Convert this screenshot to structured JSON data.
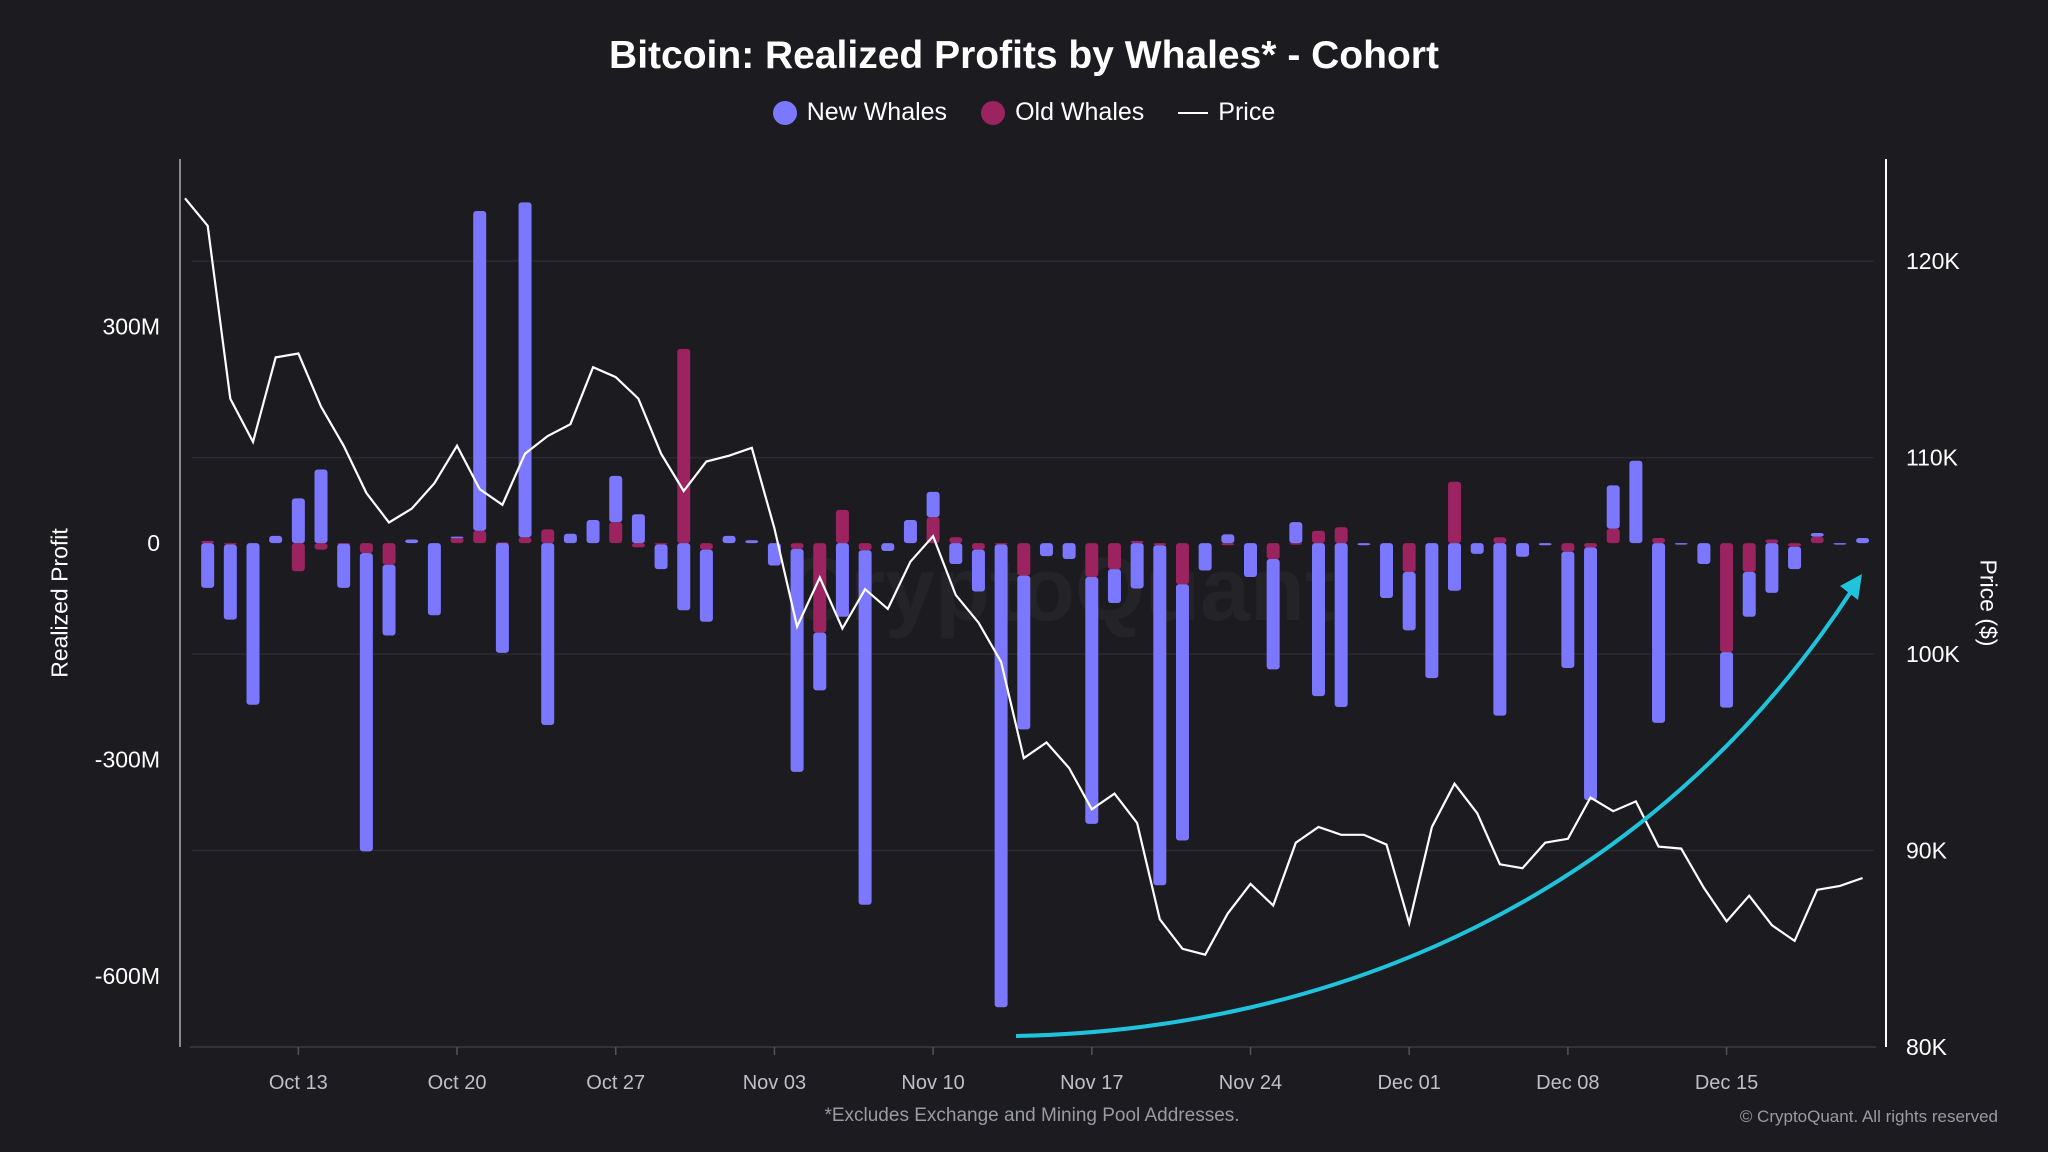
{
  "title": "Bitcoin: Realized Profits by Whales* - Cohort",
  "legend": [
    {
      "label": "New Whales",
      "color": "#7b78ff",
      "marker": "circle"
    },
    {
      "label": "Old Whales",
      "color": "#9b2360",
      "marker": "circle"
    },
    {
      "label": "Price",
      "color": "#ffffff",
      "marker": "line"
    }
  ],
  "footnote": "*Excludes Exchange and Mining Pool Addresses.",
  "copyright": "© CryptoQuant. All rights reserved",
  "watermark": "CryptoQuant",
  "chart_data": {
    "type": "bar",
    "subtypes": {
      "New Whales": "stacked-bar",
      "Old Whales": "stacked-bar",
      "Price": "line"
    },
    "title": "Bitcoin: Realized Profits by Whales* - Cohort",
    "ylabel": "Realized Profit",
    "ylabel_right": "Price ($)",
    "ylim": [
      -698,
      532
    ],
    "ylim_unit": "M",
    "ylim_right": [
      80,
      125.2
    ],
    "ylim_right_unit": "K",
    "yticks": [
      {
        "value": 300,
        "label": "300M"
      },
      {
        "value": 0,
        "label": "0"
      },
      {
        "value": -300,
        "label": "-300M"
      },
      {
        "value": -600,
        "label": "-600M"
      }
    ],
    "yticks_right": [
      {
        "value": 120,
        "label": "120K"
      },
      {
        "value": 110,
        "label": "110K"
      },
      {
        "value": 100,
        "label": "100K"
      },
      {
        "value": 90,
        "label": "90K"
      },
      {
        "value": 80,
        "label": "80K"
      }
    ],
    "xticks": [
      "Oct 13",
      "Oct 20",
      "Oct 27",
      "Nov 03",
      "Nov 10",
      "Nov 17",
      "Nov 24",
      "Dec 01",
      "Dec 08",
      "Dec 15"
    ],
    "grid": "horizontal at right-axis ticks",
    "legend_position": "top-center",
    "categories": [
      "Oct 08",
      "Oct 09",
      "Oct 10",
      "Oct 11",
      "Oct 12",
      "Oct 13",
      "Oct 14",
      "Oct 15",
      "Oct 16",
      "Oct 17",
      "Oct 18",
      "Oct 19",
      "Oct 20",
      "Oct 21",
      "Oct 22",
      "Oct 23",
      "Oct 24",
      "Oct 25",
      "Oct 26",
      "Oct 27",
      "Oct 28",
      "Oct 29",
      "Oct 30",
      "Oct 31",
      "Nov 01",
      "Nov 02",
      "Nov 03",
      "Nov 04",
      "Nov 05",
      "Nov 06",
      "Nov 07",
      "Nov 08",
      "Nov 09",
      "Nov 10",
      "Nov 11",
      "Nov 12",
      "Nov 13",
      "Nov 14",
      "Nov 15",
      "Nov 16",
      "Nov 17",
      "Nov 18",
      "Nov 19",
      "Nov 20",
      "Nov 21",
      "Nov 22",
      "Nov 23",
      "Nov 24",
      "Nov 25",
      "Nov 26",
      "Nov 27",
      "Nov 28",
      "Nov 29",
      "Nov 30",
      "Dec 01",
      "Dec 02",
      "Dec 03",
      "Dec 04",
      "Dec 05",
      "Dec 06",
      "Dec 07",
      "Dec 08",
      "Dec 09",
      "Dec 10",
      "Dec 11",
      "Dec 12",
      "Dec 13",
      "Dec 14",
      "Dec 15",
      "Dec 16",
      "Dec 17",
      "Dec 18",
      "Dec 19",
      "Dec 20",
      "Dec 21"
    ],
    "series": [
      {
        "name": "New Whales",
        "axis": "left",
        "unit": "M",
        "color": "#7b78ff",
        "values": [
          null,
          -62,
          -104,
          -224,
          10,
          62,
          102,
          -61,
          -413,
          -98,
          5,
          -100,
          1,
          443,
          -152,
          464,
          -252,
          13,
          32,
          64,
          40,
          -34,
          -93,
          -100,
          10,
          4,
          -31,
          -309,
          -80,
          -102,
          -491,
          -11,
          32,
          35,
          -29,
          -58,
          -641,
          -213,
          -18,
          -22,
          -342,
          -47,
          -63,
          -471,
          -355,
          -38,
          12,
          -47,
          -153,
          29,
          -212,
          -227,
          -3,
          -76,
          -81,
          -187,
          -66,
          -15,
          -239,
          -19,
          -3,
          -161,
          -350,
          60,
          114,
          -249,
          -2,
          -29,
          -77,
          -62,
          -69,
          -31,
          5,
          -1,
          7
        ]
      },
      {
        "name": "Old Whales",
        "axis": "left",
        "unit": "M",
        "color": "#9b2360",
        "values": [
          null,
          3,
          -2,
          0,
          0,
          -39,
          -9,
          -1,
          -14,
          -30,
          0,
          0,
          8,
          17,
          1,
          8,
          19,
          0,
          0,
          29,
          -6,
          -2,
          269,
          -9,
          0,
          0,
          0,
          -8,
          -124,
          46,
          -10,
          0,
          0,
          36,
          8,
          -9,
          -2,
          -45,
          0,
          0,
          -47,
          -36,
          3,
          -3,
          -57,
          0,
          -3,
          0,
          -22,
          -1,
          17,
          22,
          0,
          0,
          -40,
          0,
          85,
          0,
          8,
          0,
          0,
          -12,
          -6,
          20,
          0,
          7,
          0,
          0,
          -151,
          -40,
          5,
          -5,
          9,
          0,
          0
        ]
      },
      {
        "name": "Price",
        "axis": "right",
        "unit": "K USD",
        "color": "#ffffff",
        "values": [
          123.2,
          121.8,
          113.0,
          110.8,
          115.1,
          115.3,
          112.6,
          110.6,
          108.2,
          106.7,
          107.4,
          108.7,
          110.6,
          108.4,
          107.6,
          110.2,
          111.1,
          111.7,
          114.6,
          114.1,
          113.0,
          110.2,
          108.3,
          109.8,
          110.1,
          110.5,
          106.4,
          101.4,
          103.9,
          101.3,
          103.3,
          102.3,
          104.7,
          106.0,
          103.0,
          101.6,
          99.6,
          94.7,
          95.5,
          94.2,
          92.1,
          92.9,
          91.4,
          86.5,
          85.0,
          84.7,
          86.8,
          88.3,
          87.2,
          90.4,
          91.2,
          90.8,
          90.8,
          90.3,
          86.3,
          91.2,
          93.4,
          91.9,
          89.3,
          89.1,
          90.4,
          90.6,
          92.7,
          92.0,
          92.5,
          90.2,
          90.1,
          88.1,
          86.4,
          87.7,
          86.2,
          85.4,
          88.0,
          88.2,
          88.6
        ]
      }
    ],
    "annotations": [
      {
        "type": "curved-arrow",
        "from": "Nov 13",
        "to": "Dec 21",
        "direction": "up",
        "color": "#1fc3dc"
      }
    ]
  },
  "colors": {
    "background": "#1b1b20",
    "grid": "#2a2a31",
    "axis": "#8a8a90"
  }
}
